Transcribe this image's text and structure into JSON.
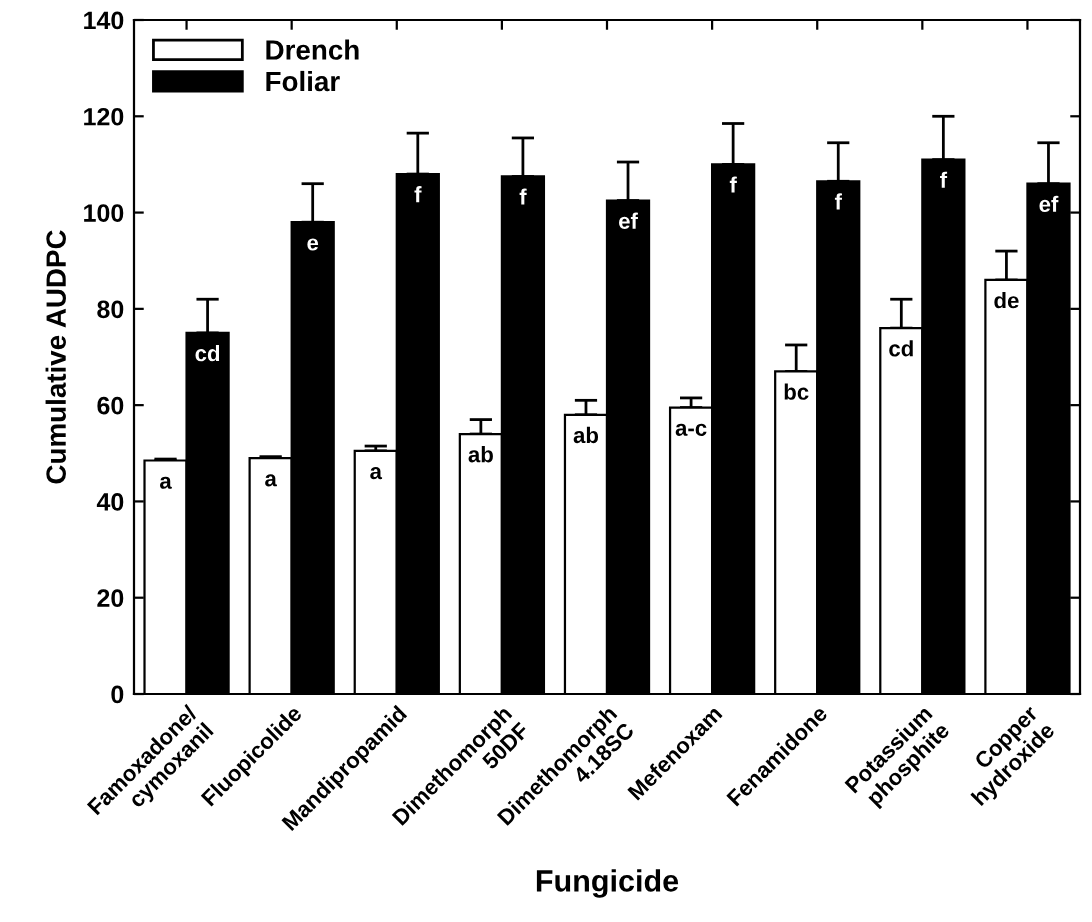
{
  "chart_data": {
    "type": "bar",
    "xlabel": "Fungicide",
    "ylabel": "Cumulative AUDPC",
    "categories": [
      "Famoxadone/\ncymoxanil",
      "Fluopicolide",
      "Mandipropamid",
      "Dimethomorph\n50DF",
      "Dimethomorph\n4.18SC",
      "Mefenoxam",
      "Fenamidone",
      "Potassium\nphosphite",
      "Copper\nhydroxide"
    ],
    "series": [
      {
        "name": "Drench",
        "color": "#ffffff",
        "values": [
          48.5,
          49,
          50.5,
          54,
          58,
          59.5,
          67,
          76,
          86
        ],
        "errors": [
          [
            48.5,
            48.8
          ],
          [
            49,
            49.3
          ],
          [
            50.5,
            51.5
          ],
          [
            54,
            57
          ],
          [
            58,
            61
          ],
          [
            59.5,
            61.5
          ],
          [
            67,
            72.5
          ],
          [
            76,
            82
          ],
          [
            86,
            92
          ]
        ],
        "value_labels": [
          "a",
          "a",
          "a",
          "ab",
          "ab",
          "a-c",
          "bc",
          "cd",
          "de"
        ]
      },
      {
        "name": "Foliar",
        "color": "#000000",
        "values": [
          75,
          98,
          108,
          107.5,
          102.5,
          110,
          106.5,
          111,
          106
        ],
        "errors": [
          [
            75,
            82
          ],
          [
            98,
            106
          ],
          [
            108,
            116.5
          ],
          [
            107.5,
            115.5
          ],
          [
            102.5,
            110.5
          ],
          [
            110,
            118.5
          ],
          [
            106.5,
            114.5
          ],
          [
            111,
            120
          ],
          [
            106,
            114.5
          ]
        ],
        "value_labels": [
          "cd",
          "e",
          "f",
          "f",
          "ef",
          "f",
          "f",
          "f",
          "ef"
        ]
      }
    ],
    "ylim": [
      0,
      140
    ],
    "yticks": [
      0,
      20,
      40,
      60,
      80,
      100,
      120,
      140
    ],
    "grid": false,
    "legend": "top left"
  }
}
